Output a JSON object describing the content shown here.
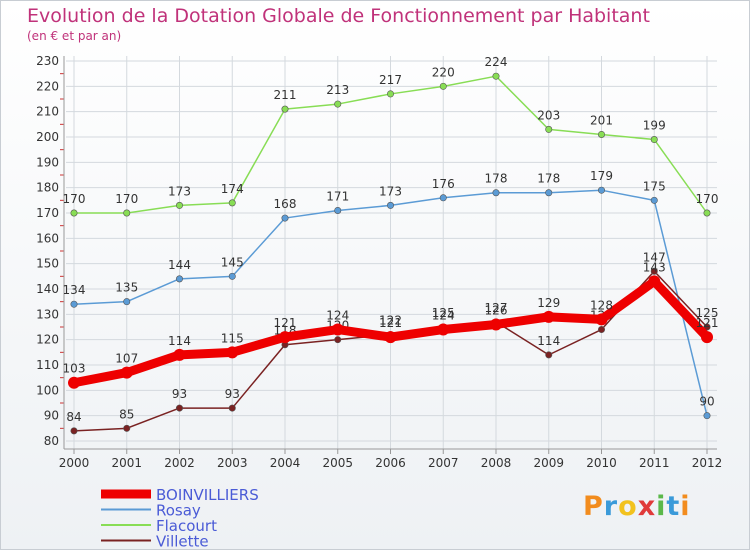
{
  "title": "Evolution de la Dotation Globale de Fonctionnement par Habitant",
  "subtitle": "(en € et par an)",
  "logo_text": "Proxiti",
  "colors": {
    "title": "#c0327a",
    "legend_text": "#4a5bd6"
  },
  "chart_data": {
    "type": "line",
    "title": "Evolution de la Dotation Globale de Fonctionnement par Habitant",
    "subtitle": "(en € et par an)",
    "xlabel": "",
    "ylabel": "",
    "x": [
      "2000",
      "2001",
      "2002",
      "2003",
      "2004",
      "2005",
      "2006",
      "2007",
      "2008",
      "2009",
      "2010",
      "2011",
      "2012"
    ],
    "ylim": [
      80,
      230
    ],
    "yticks": [
      80,
      90,
      100,
      110,
      120,
      130,
      140,
      150,
      160,
      170,
      180,
      190,
      200,
      210,
      220,
      230
    ],
    "grid": true,
    "legend_position": "bottom-left",
    "series": [
      {
        "name": "BOINVILLIERS",
        "color": "#ee0000",
        "values": [
          103,
          107,
          114,
          115,
          121,
          124,
          121,
          124,
          126,
          129,
          128,
          143,
          121
        ]
      },
      {
        "name": "Rosay",
        "color": "#5b9bd5",
        "values": [
          134,
          135,
          144,
          145,
          168,
          171,
          173,
          176,
          178,
          178,
          179,
          175,
          90
        ]
      },
      {
        "name": "Flacourt",
        "color": "#88dd55",
        "values": [
          170,
          170,
          173,
          174,
          211,
          213,
          217,
          220,
          224,
          203,
          201,
          199,
          170
        ]
      },
      {
        "name": "Villette",
        "color": "#7a2222",
        "values": [
          84,
          85,
          93,
          93,
          118,
          120,
          122,
          125,
          127,
          114,
          124,
          147,
          125
        ]
      }
    ]
  }
}
